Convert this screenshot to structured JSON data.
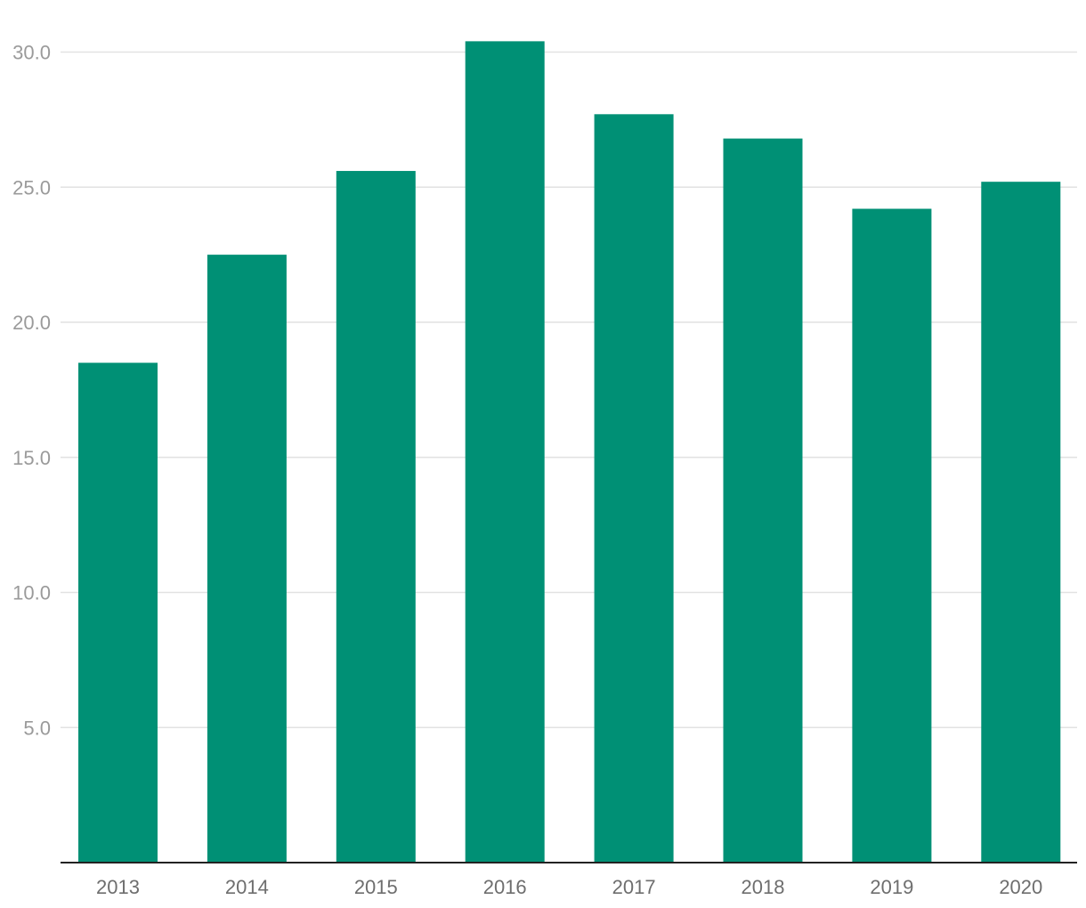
{
  "chart_data": {
    "type": "bar",
    "categories": [
      "2013",
      "2014",
      "2015",
      "2016",
      "2017",
      "2018",
      "2019",
      "2020"
    ],
    "values": [
      18.5,
      22.5,
      25.6,
      30.4,
      27.7,
      26.8,
      24.2,
      25.2
    ],
    "y_ticks": [
      "5.0",
      "10.0",
      "15.0",
      "20.0",
      "25.0",
      "30.0"
    ],
    "ylim": [
      0,
      30.4
    ],
    "grid": true,
    "bar_color": "#009075",
    "title": "",
    "xlabel": "",
    "ylabel": ""
  }
}
